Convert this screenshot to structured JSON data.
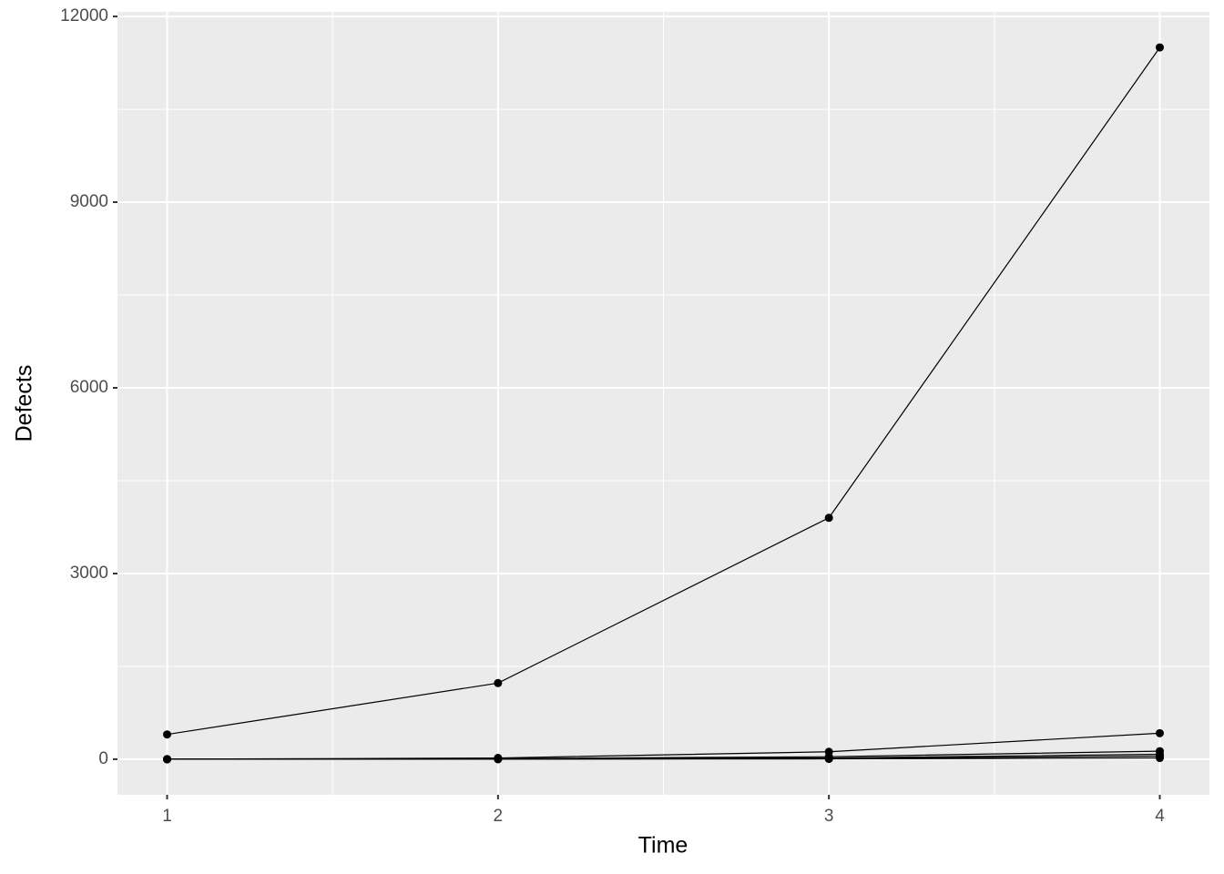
{
  "chart_data": {
    "type": "line",
    "x_label": "Time",
    "y_label": "Defects",
    "x": [
      1,
      2,
      3,
      4
    ],
    "series": [
      {
        "color": "#000000",
        "values": [
          400,
          1230,
          3900,
          11500
        ]
      },
      {
        "color": "#000000",
        "values": [
          0,
          20,
          120,
          420
        ]
      },
      {
        "color": "#000000",
        "values": [
          0,
          10,
          40,
          130
        ]
      },
      {
        "color": "#000000",
        "values": [
          0,
          5,
          20,
          80
        ]
      },
      {
        "color": "#000000",
        "values": [
          0,
          2,
          10,
          50
        ]
      },
      {
        "color": "#000000",
        "values": [
          0,
          0,
          5,
          20
        ]
      }
    ],
    "xlim": [
      0.85,
      4.15
    ],
    "xticks": [
      1,
      2,
      3,
      4
    ],
    "xminor": [
      1.5,
      2.5,
      3.5
    ],
    "ylim": [
      -575,
      12075
    ],
    "yticks": [
      0,
      3000,
      6000,
      9000,
      12000
    ],
    "yminor": [
      1500,
      4500,
      7500,
      10500
    ],
    "grid": true,
    "panel_color": "#ebebeb"
  }
}
